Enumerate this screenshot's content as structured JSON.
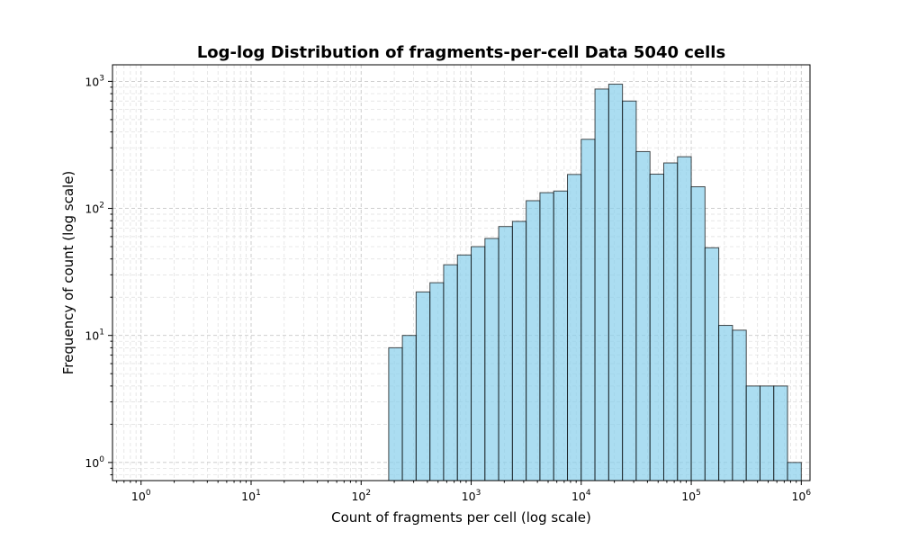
{
  "chart_data": {
    "type": "bar",
    "title": "Log-log Distribution of fragments-per-cell Data 5040 cells",
    "xlabel": "Count of fragments per cell (log scale)",
    "ylabel": "Frequency of count (log scale)",
    "x_scale": "log",
    "y_scale": "log",
    "xlim": [
      0.55,
      1200000
    ],
    "ylim": [
      0.72,
      1350
    ],
    "grid": true,
    "bar_color": "#87CEEB",
    "edge_color": "#000000",
    "x_ticks": [
      {
        "base": "10",
        "exp": "0",
        "value": 1
      },
      {
        "base": "10",
        "exp": "1",
        "value": 10
      },
      {
        "base": "10",
        "exp": "2",
        "value": 100
      },
      {
        "base": "10",
        "exp": "3",
        "value": 1000
      },
      {
        "base": "10",
        "exp": "4",
        "value": 10000
      },
      {
        "base": "10",
        "exp": "5",
        "value": 100000
      },
      {
        "base": "10",
        "exp": "6",
        "value": 1000000
      }
    ],
    "y_ticks": [
      {
        "base": "10",
        "exp": "0",
        "value": 1
      },
      {
        "base": "10",
        "exp": "1",
        "value": 10
      },
      {
        "base": "10",
        "exp": "2",
        "value": 100
      },
      {
        "base": "10",
        "exp": "3",
        "value": 1000
      }
    ],
    "bin_edges": [
      178,
      237,
      316,
      422,
      562,
      750,
      1000,
      1334,
      1778,
      2371,
      3162,
      4217,
      5623,
      7499,
      10000,
      13335,
      17783,
      23714,
      31623,
      42170,
      56234,
      74989,
      100000,
      133352,
      177828,
      237137,
      316228,
      421697,
      562341,
      749894
    ],
    "counts": [
      8,
      10,
      22,
      26,
      36,
      43,
      50,
      58,
      72,
      79,
      115,
      133,
      137,
      185,
      350,
      870,
      950,
      700,
      280,
      186,
      228,
      255,
      148,
      49,
      12,
      11,
      4,
      4,
      4,
      1
    ]
  }
}
